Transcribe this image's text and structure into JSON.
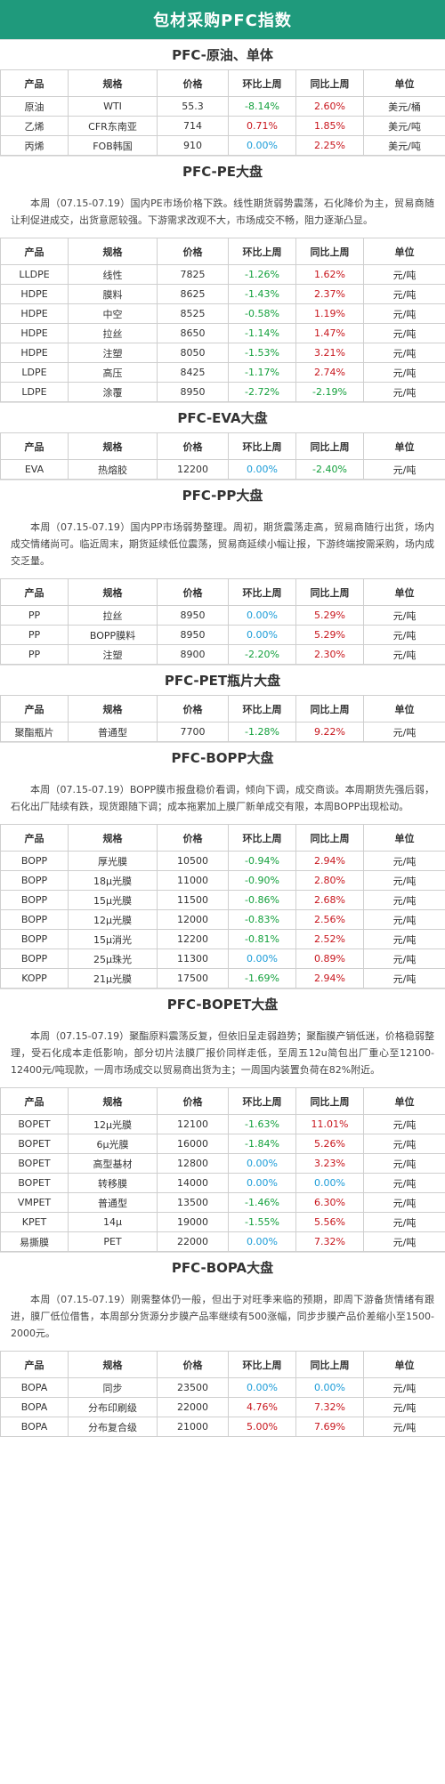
{
  "page_title": "包材采购PFC指数",
  "headers": [
    "产品",
    "规格",
    "价格",
    "环比上周",
    "同比上周",
    "单位"
  ],
  "sections": [
    {
      "title": "PFC-原油、单体",
      "desc": "",
      "rows": [
        [
          "原油",
          "WTI",
          "55.3",
          "-8.14%",
          "2.60%",
          "美元/桶"
        ],
        [
          "乙烯",
          "CFR东南亚",
          "714",
          "0.71%",
          "1.85%",
          "美元/吨"
        ],
        [
          "丙烯",
          "FOB韩国",
          "910",
          "0.00%",
          "2.25%",
          "美元/吨"
        ]
      ]
    },
    {
      "title": "PFC-PE大盘",
      "desc": "本周（07.15-07.19）国内PE市场价格下跌。线性期货弱势震荡，石化降价为主，贸易商随让利促进成交，出货意愿较强。下游需求改观不大，市场成交不畅，阻力逐渐凸显。",
      "rows": [
        [
          "LLDPE",
          "线性",
          "7825",
          "-1.26%",
          "1.62%",
          "元/吨"
        ],
        [
          "HDPE",
          "膜料",
          "8625",
          "-1.43%",
          "2.37%",
          "元/吨"
        ],
        [
          "HDPE",
          "中空",
          "8525",
          "-0.58%",
          "1.19%",
          "元/吨"
        ],
        [
          "HDPE",
          "拉丝",
          "8650",
          "-1.14%",
          "1.47%",
          "元/吨"
        ],
        [
          "HDPE",
          "注塑",
          "8050",
          "-1.53%",
          "3.21%",
          "元/吨"
        ],
        [
          "LDPE",
          "高压",
          "8425",
          "-1.17%",
          "2.74%",
          "元/吨"
        ],
        [
          "LDPE",
          "涂覆",
          "8950",
          "-2.72%",
          "-2.19%",
          "元/吨"
        ]
      ]
    },
    {
      "title": "PFC-EVA大盘",
      "desc": "",
      "rows": [
        [
          "EVA",
          "热熔胶",
          "12200",
          "0.00%",
          "-2.40%",
          "元/吨"
        ]
      ]
    },
    {
      "title": "PFC-PP大盘",
      "desc": "本周（07.15-07.19）国内PP市场弱势整理。周初，期货震荡走高，贸易商随行出货，场内成交情绪尚可。临近周末，期货延续低位震荡，贸易商延续小幅让报，下游终端按需采购，场内成交乏量。",
      "rows": [
        [
          "PP",
          "拉丝",
          "8950",
          "0.00%",
          "5.29%",
          "元/吨"
        ],
        [
          "PP",
          "BOPP膜料",
          "8950",
          "0.00%",
          "5.29%",
          "元/吨"
        ],
        [
          "PP",
          "注塑",
          "8900",
          "-2.20%",
          "2.30%",
          "元/吨"
        ]
      ]
    },
    {
      "title": "PFC-PET瓶片大盘",
      "desc": "",
      "rows": [
        [
          "聚酯瓶片",
          "普通型",
          "7700",
          "-1.28%",
          "9.22%",
          "元/吨"
        ]
      ]
    },
    {
      "title": "PFC-BOPP大盘",
      "desc": "本周（07.15-07.19）BOPP膜市报盘稳价看调，倾向下调，成交商谈。本周期货先强后弱，石化出厂陆续有跌，现货跟随下调；成本拖累加上膜厂新单成交有限，本周BOPP出现松动。",
      "rows": [
        [
          "BOPP",
          "厚光膜",
          "10500",
          "-0.94%",
          "2.94%",
          "元/吨"
        ],
        [
          "BOPP",
          "18μ光膜",
          "11000",
          "-0.90%",
          "2.80%",
          "元/吨"
        ],
        [
          "BOPP",
          "15μ光膜",
          "11500",
          "-0.86%",
          "2.68%",
          "元/吨"
        ],
        [
          "BOPP",
          "12μ光膜",
          "12000",
          "-0.83%",
          "2.56%",
          "元/吨"
        ],
        [
          "BOPP",
          "15μ消光",
          "12200",
          "-0.81%",
          "2.52%",
          "元/吨"
        ],
        [
          "BOPP",
          "25μ珠光",
          "11300",
          "0.00%",
          "0.89%",
          "元/吨"
        ],
        [
          "KOPP",
          "21μ光膜",
          "17500",
          "-1.69%",
          "2.94%",
          "元/吨"
        ]
      ]
    },
    {
      "title": "PFC-BOPET大盘",
      "desc": "本周（07.15-07.19）聚酯原料震荡反复，但依旧呈走弱趋势；聚酯膜产销低迷，价格稳弱整理，受石化成本走低影响，部分切片法膜厂报价同样走低，至周五12u简包出厂重心至12100-12400元/吨现款，一周市场成交以贸易商出货为主；一周国内装置负荷在82%附近。",
      "rows": [
        [
          "BOPET",
          "12μ光膜",
          "12100",
          "-1.63%",
          "11.01%",
          "元/吨"
        ],
        [
          "BOPET",
          "6μ光膜",
          "16000",
          "-1.84%",
          "5.26%",
          "元/吨"
        ],
        [
          "BOPET",
          "高型基材",
          "12800",
          "0.00%",
          "3.23%",
          "元/吨"
        ],
        [
          "BOPET",
          "转移膜",
          "14000",
          "0.00%",
          "0.00%",
          "元/吨"
        ],
        [
          "VMPET",
          "普通型",
          "13500",
          "-1.46%",
          "6.30%",
          "元/吨"
        ],
        [
          "KPET",
          "14μ",
          "19000",
          "-1.55%",
          "5.56%",
          "元/吨"
        ],
        [
          "易撕膜",
          "PET",
          "22000",
          "0.00%",
          "7.32%",
          "元/吨"
        ]
      ]
    },
    {
      "title": "PFC-BOPA大盘",
      "desc": "本周（07.15-07.19）刚需整体仍一般，但出于对旺季来临的预期，即周下游备货情绪有跟进，膜厂低位借售，本周部分货源分步膜产品率继续有500涨幅，同步步膜产品价差缩小至1500-2000元。",
      "rows": [
        [
          "BOPA",
          "同步",
          "23500",
          "0.00%",
          "0.00%",
          "元/吨"
        ],
        [
          "BOPA",
          "分布印刷级",
          "22000",
          "4.76%",
          "7.32%",
          "元/吨"
        ],
        [
          "BOPA",
          "分布复合级",
          "21000",
          "5.00%",
          "7.69%",
          "元/吨"
        ]
      ]
    }
  ],
  "colors": {
    "title_bg": "#1f9a7c",
    "up": "#c8161d",
    "down": "#13a03c",
    "flat": "#1b9cd8"
  }
}
